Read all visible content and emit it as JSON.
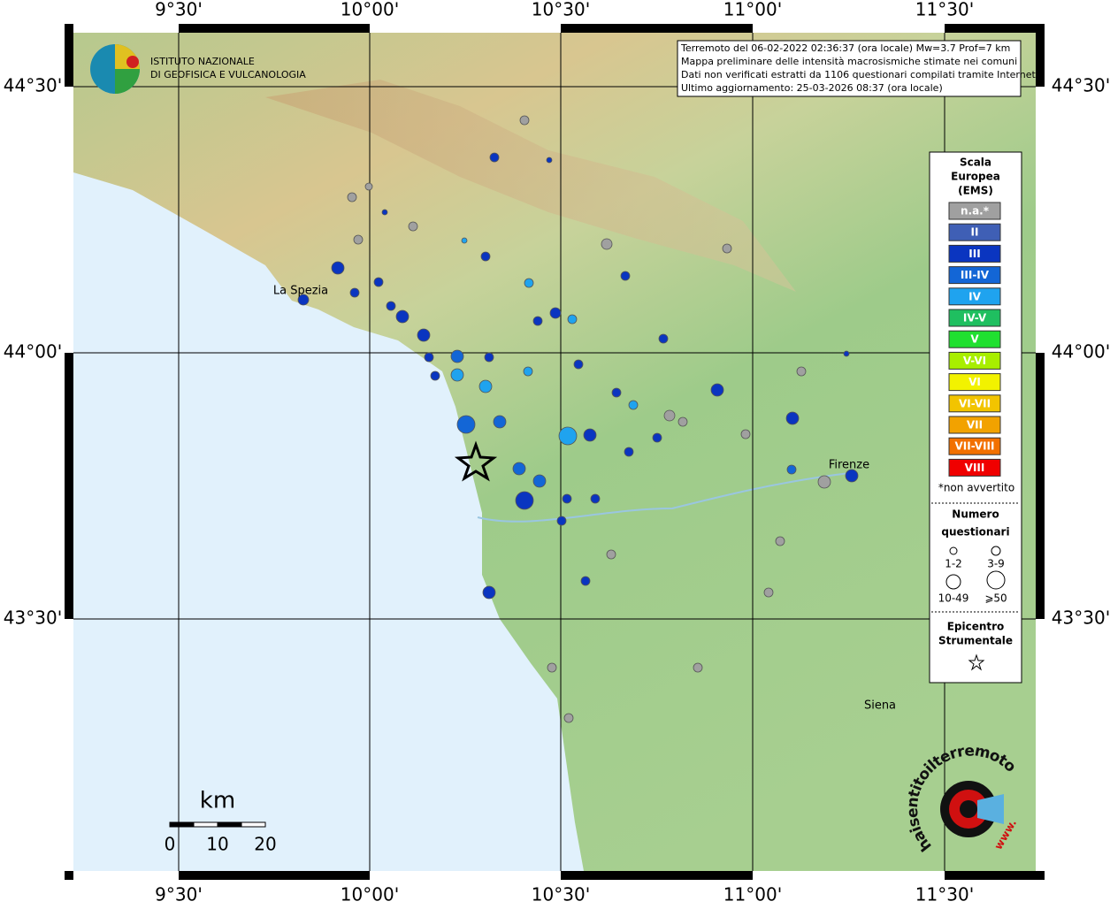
{
  "header": {
    "institute": [
      "ISTITUTO NAZIONALE",
      "DI GEOFISICA E VULCANOLOGIA"
    ]
  },
  "info": [
    "Terremoto del 06-02-2022 02:36:37 (ora locale) Mw=3.7 Prof=7 km",
    "Mappa preliminare delle intensità macrosismiche stimate nei comuni",
    "Dati non verificati estratti da 1106 questionari compilati tramite Internet.",
    "Ultimo aggiornamento: 25-03-2026 08:37 (ora locale)"
  ],
  "axes": {
    "longitudes": [
      "9°30'",
      "10°00'",
      "10°30'",
      "11°00'",
      "11°30'"
    ],
    "latitudes": [
      "44°30'",
      "44°00'",
      "43°30'"
    ]
  },
  "places": [
    "La Spezia",
    "Firenze",
    "Siena"
  ],
  "legend": {
    "title": [
      "Scala",
      "Europea",
      "(EMS)"
    ],
    "levels": [
      {
        "label": "n.a.*",
        "color": "#a0a0a0"
      },
      {
        "label": "II",
        "color": "#3f5fb5"
      },
      {
        "label": "III",
        "color": "#0a35c0"
      },
      {
        "label": "III-IV",
        "color": "#1366d6"
      },
      {
        "label": "IV",
        "color": "#1fa3ef"
      },
      {
        "label": "IV-V",
        "color": "#1fbf60"
      },
      {
        "label": "V",
        "color": "#20e030"
      },
      {
        "label": "V-VI",
        "color": "#a8ee00"
      },
      {
        "label": "VI",
        "color": "#f2f200"
      },
      {
        "label": "VI-VII",
        "color": "#f2c400"
      },
      {
        "label": "VII",
        "color": "#f2a200"
      },
      {
        "label": "VII-VIII",
        "color": "#f27000"
      },
      {
        "label": "VIII",
        "color": "#f00000"
      }
    ],
    "note": "*non avvertito",
    "count_title": [
      "Numero",
      "questionari"
    ],
    "sizes": [
      "1-2",
      "3-9",
      "10-49",
      "⩾50"
    ],
    "epicenter_title": [
      "Epicentro",
      "Strumentale"
    ]
  },
  "scale_bar": {
    "unit": "km",
    "labels": [
      "0",
      "10",
      "20"
    ]
  },
  "logo": {
    "text": "haisentitoilterremoto.it",
    "www": "www."
  }
}
